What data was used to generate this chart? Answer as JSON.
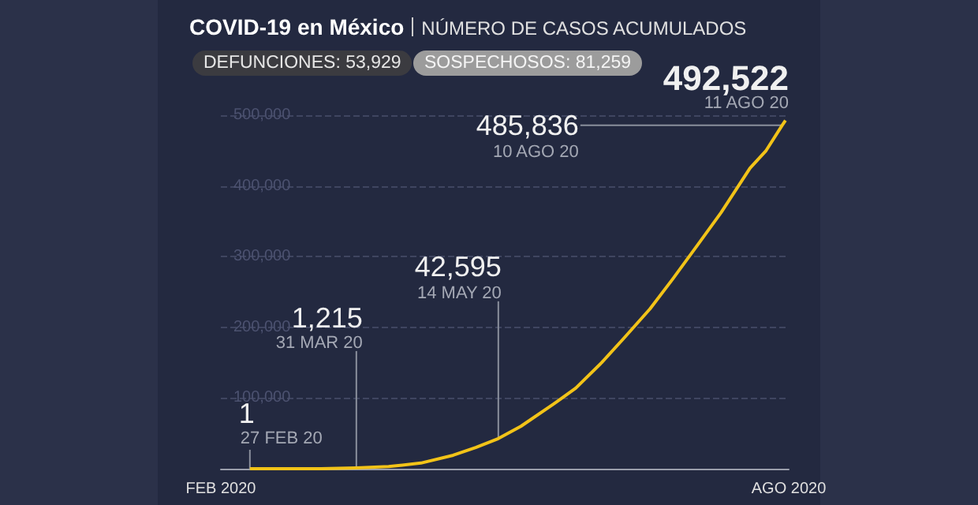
{
  "chart_data": {
    "type": "line",
    "title": "COVID-19 en México",
    "subtitle": "NÚMERO DE CASOS ACUMULADOS",
    "x": [
      "2020-02-27",
      "2020-03-10",
      "2020-03-20",
      "2020-03-31",
      "2020-04-10",
      "2020-04-20",
      "2020-04-30",
      "2020-05-07",
      "2020-05-14",
      "2020-05-21",
      "2020-05-31",
      "2020-06-07",
      "2020-06-15",
      "2020-06-22",
      "2020-06-30",
      "2020-07-07",
      "2020-07-15",
      "2020-07-22",
      "2020-07-31",
      "2020-08-05",
      "2020-08-10",
      "2020-08-11"
    ],
    "series": [
      {
        "color": "#f2c318",
        "values": [
          1,
          0,
          0,
          1215,
          3000,
          8000,
          19000,
          30000,
          42595,
          60000,
          91000,
          114000,
          150000,
          185000,
          226000,
          268000,
          318000,
          362000,
          425000,
          450000,
          485836,
          492522
        ]
      }
    ],
    "xlim": [
      "2020-02-18",
      "2020-08-12"
    ],
    "xticks": [
      {
        "value": "2020-02-18",
        "label": "FEB 2020"
      },
      {
        "value": "2020-08-12",
        "label": "AGO 2020"
      }
    ],
    "ylim": [
      0,
      500000
    ],
    "yticks": [
      {
        "value": 100000,
        "label": "100,000"
      },
      {
        "value": 200000,
        "label": "200,000"
      },
      {
        "value": 300000,
        "label": "300,000"
      },
      {
        "value": 400000,
        "label": "400,000"
      },
      {
        "value": 500000,
        "label": "500,000"
      }
    ],
    "grid": "y",
    "marker": "none",
    "line_style": "solid",
    "annotations": [
      "DEFUNCIONES: 53,929",
      "SOSPECHOSOS: 81,259",
      {
        "text": "1",
        "x": "2020-02-27",
        "y": 1
      },
      {
        "text": "27 FEB 20",
        "x": "2020-02-27",
        "y": 1
      },
      {
        "text": "1,215",
        "x": "2020-03-31",
        "y": 1215
      },
      {
        "text": "31 MAR 20",
        "x": "2020-03-31",
        "y": 1215
      },
      {
        "text": "42,595",
        "x": "2020-05-14",
        "y": 42595
      },
      {
        "text": "14 MAY 20",
        "x": "2020-05-14",
        "y": 42595
      },
      {
        "text": "485,836",
        "x": "2020-08-10",
        "y": 485836
      },
      {
        "text": "10 AGO 20",
        "x": "2020-08-10",
        "y": 485836
      },
      {
        "text": "492,522",
        "x": "2020-08-11",
        "y": 492522
      },
      {
        "text": "11 AGO 20",
        "x": "2020-08-11",
        "y": 492522
      }
    ]
  }
}
